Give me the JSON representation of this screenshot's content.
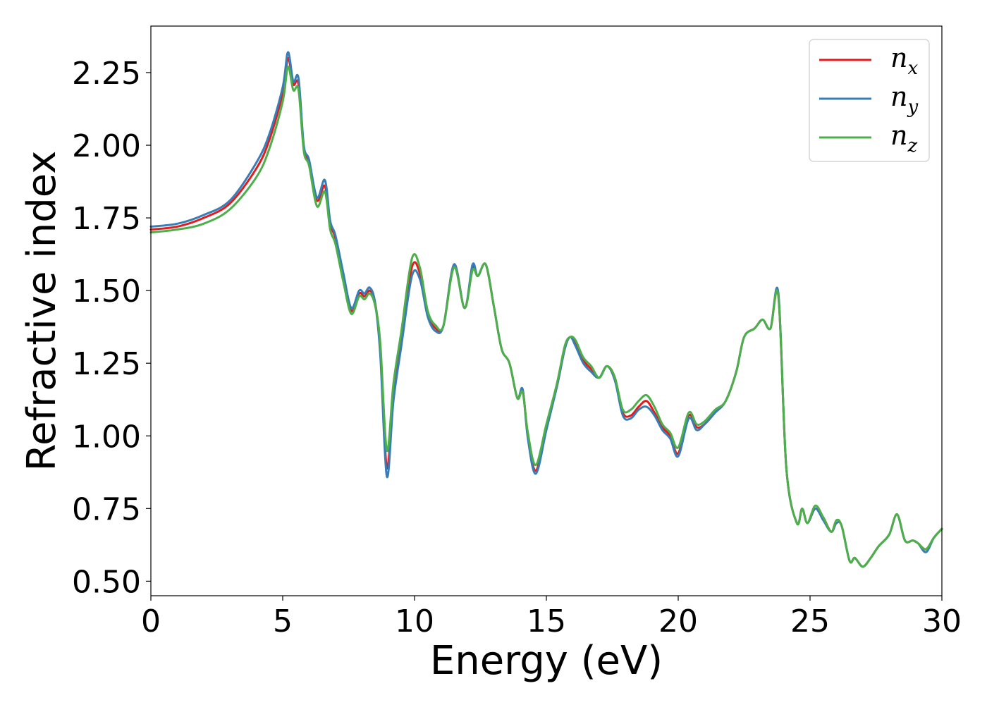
{
  "chart_data": {
    "type": "line",
    "title": "",
    "xlabel": "Energy (eV)",
    "ylabel": "Refractive index",
    "xlim": [
      0,
      30
    ],
    "ylim": [
      0.45,
      2.41
    ],
    "xticks": [
      0,
      5,
      10,
      15,
      20,
      25,
      30
    ],
    "xtick_labels": [
      "0",
      "5",
      "10",
      "15",
      "20",
      "25",
      "30"
    ],
    "yticks": [
      0.5,
      0.75,
      1.0,
      1.25,
      1.5,
      1.75,
      2.0,
      2.25
    ],
    "ytick_labels": [
      "0.50",
      "0.75",
      "1.00",
      "1.25",
      "1.50",
      "1.75",
      "2.00",
      "2.25"
    ],
    "grid": false,
    "legend_position": "top-right",
    "x": [
      0,
      1,
      2,
      3,
      4,
      4.5,
      5,
      5.2,
      5.4,
      5.6,
      5.8,
      6.0,
      6.3,
      6.6,
      6.8,
      7.0,
      7.3,
      7.6,
      7.9,
      8.1,
      8.3,
      8.5,
      8.7,
      8.95,
      9.2,
      9.5,
      9.9,
      10.2,
      10.5,
      10.8,
      11.1,
      11.5,
      11.9,
      12.2,
      12.4,
      12.7,
      13.0,
      13.3,
      13.6,
      13.9,
      14.1,
      14.3,
      14.6,
      15.0,
      15.4,
      15.7,
      15.9,
      16.1,
      16.4,
      16.7,
      17.0,
      17.3,
      17.6,
      17.9,
      18.2,
      18.5,
      18.8,
      19.1,
      19.4,
      19.7,
      20.0,
      20.4,
      20.7,
      21.0,
      21.4,
      21.8,
      22.2,
      22.5,
      22.9,
      23.2,
      23.5,
      23.8,
      24.1,
      24.5,
      24.7,
      24.9,
      25.2,
      25.5,
      25.8,
      26.0,
      26.2,
      26.5,
      26.7,
      27.0,
      27.3,
      27.6,
      28.0,
      28.3,
      28.6,
      28.9,
      29.1,
      29.4,
      29.7,
      30.0
    ],
    "series": [
      {
        "name": "n_x",
        "color": "#e41a1c",
        "values": [
          1.71,
          1.72,
          1.75,
          1.8,
          1.92,
          2.02,
          2.18,
          2.3,
          2.21,
          2.21,
          1.99,
          1.94,
          1.81,
          1.86,
          1.73,
          1.68,
          1.55,
          1.43,
          1.49,
          1.48,
          1.5,
          1.46,
          1.3,
          0.89,
          1.15,
          1.33,
          1.58,
          1.56,
          1.42,
          1.37,
          1.38,
          1.59,
          1.44,
          1.58,
          1.55,
          1.59,
          1.45,
          1.3,
          1.25,
          1.13,
          1.16,
          1.0,
          0.88,
          1.03,
          1.17,
          1.3,
          1.34,
          1.32,
          1.26,
          1.23,
          1.2,
          1.24,
          1.2,
          1.08,
          1.07,
          1.1,
          1.12,
          1.08,
          1.03,
          1.0,
          0.94,
          1.07,
          1.03,
          1.04,
          1.08,
          1.12,
          1.22,
          1.34,
          1.37,
          1.4,
          1.37,
          1.48,
          0.89,
          0.7,
          0.75,
          0.7,
          0.75,
          0.72,
          0.67,
          0.7,
          0.69,
          0.57,
          0.58,
          0.55,
          0.58,
          0.62,
          0.66,
          0.73,
          0.64,
          0.64,
          0.63,
          0.61,
          0.65,
          0.68
        ]
      },
      {
        "name": "n_y",
        "color": "#377eb8",
        "values": [
          1.72,
          1.73,
          1.76,
          1.81,
          1.94,
          2.04,
          2.2,
          2.32,
          2.22,
          2.23,
          2.0,
          1.95,
          1.82,
          1.88,
          1.74,
          1.69,
          1.56,
          1.44,
          1.5,
          1.49,
          1.51,
          1.46,
          1.28,
          0.86,
          1.12,
          1.31,
          1.55,
          1.54,
          1.41,
          1.36,
          1.38,
          1.59,
          1.44,
          1.59,
          1.55,
          1.59,
          1.45,
          1.3,
          1.25,
          1.13,
          1.16,
          0.99,
          0.87,
          1.02,
          1.17,
          1.3,
          1.34,
          1.31,
          1.25,
          1.22,
          1.2,
          1.24,
          1.19,
          1.07,
          1.06,
          1.09,
          1.1,
          1.07,
          1.02,
          0.99,
          0.93,
          1.06,
          1.02,
          1.04,
          1.08,
          1.12,
          1.22,
          1.34,
          1.37,
          1.4,
          1.37,
          1.49,
          0.89,
          0.7,
          0.75,
          0.7,
          0.75,
          0.71,
          0.67,
          0.7,
          0.69,
          0.57,
          0.58,
          0.55,
          0.58,
          0.62,
          0.66,
          0.73,
          0.64,
          0.64,
          0.63,
          0.6,
          0.65,
          0.68
        ]
      },
      {
        "name": "n_z",
        "color": "#4daf4a",
        "values": [
          1.7,
          1.71,
          1.73,
          1.78,
          1.89,
          1.99,
          2.15,
          2.27,
          2.19,
          2.19,
          1.98,
          1.93,
          1.79,
          1.84,
          1.71,
          1.66,
          1.53,
          1.42,
          1.48,
          1.47,
          1.49,
          1.45,
          1.32,
          0.95,
          1.18,
          1.36,
          1.61,
          1.58,
          1.43,
          1.38,
          1.38,
          1.58,
          1.44,
          1.57,
          1.55,
          1.59,
          1.45,
          1.3,
          1.25,
          1.13,
          1.15,
          1.01,
          0.9,
          1.04,
          1.18,
          1.31,
          1.34,
          1.33,
          1.27,
          1.24,
          1.2,
          1.24,
          1.2,
          1.09,
          1.09,
          1.12,
          1.14,
          1.1,
          1.04,
          1.01,
          0.96,
          1.08,
          1.04,
          1.05,
          1.09,
          1.12,
          1.22,
          1.34,
          1.37,
          1.4,
          1.37,
          1.48,
          0.89,
          0.7,
          0.75,
          0.7,
          0.76,
          0.72,
          0.67,
          0.71,
          0.69,
          0.57,
          0.58,
          0.55,
          0.58,
          0.62,
          0.66,
          0.73,
          0.64,
          0.64,
          0.63,
          0.61,
          0.65,
          0.68
        ]
      }
    ],
    "legend": [
      {
        "base": "n",
        "sub": "x"
      },
      {
        "base": "n",
        "sub": "y"
      },
      {
        "base": "n",
        "sub": "z"
      }
    ]
  }
}
